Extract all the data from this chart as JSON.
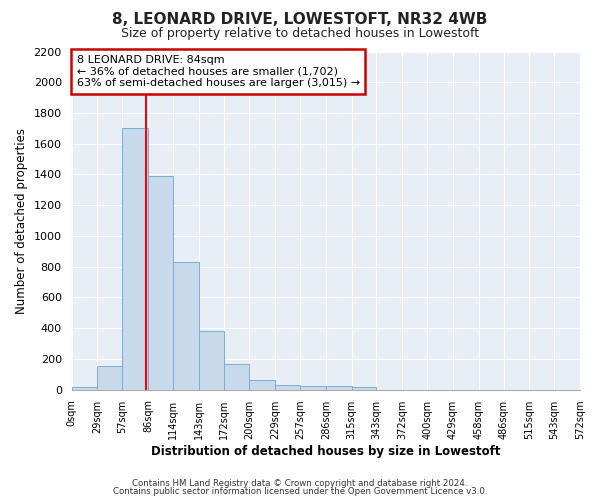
{
  "title": "8, LEONARD DRIVE, LOWESTOFT, NR32 4WB",
  "subtitle": "Size of property relative to detached houses in Lowestoft",
  "xlabel": "Distribution of detached houses by size in Lowestoft",
  "ylabel": "Number of detached properties",
  "bar_values": [
    20,
    155,
    1700,
    1390,
    830,
    380,
    165,
    65,
    30,
    25,
    25,
    15,
    0,
    0,
    0,
    0,
    0,
    0,
    0,
    0
  ],
  "bin_edges": [
    0,
    29,
    57,
    86,
    114,
    143,
    172,
    200,
    229,
    257,
    286,
    315,
    343,
    372,
    400,
    429,
    458,
    486,
    515,
    543,
    572
  ],
  "tick_labels": [
    "0sqm",
    "29sqm",
    "57sqm",
    "86sqm",
    "114sqm",
    "143sqm",
    "172sqm",
    "200sqm",
    "229sqm",
    "257sqm",
    "286sqm",
    "315sqm",
    "343sqm",
    "372sqm",
    "400sqm",
    "429sqm",
    "458sqm",
    "486sqm",
    "515sqm",
    "543sqm",
    "572sqm"
  ],
  "bar_color": "#c8d9ec",
  "bar_edge_color": "#7aaed4",
  "red_line_x": 84,
  "ylim": [
    0,
    2200
  ],
  "yticks": [
    0,
    200,
    400,
    600,
    800,
    1000,
    1200,
    1400,
    1600,
    1800,
    2000,
    2200
  ],
  "annotation_title": "8 LEONARD DRIVE: 84sqm",
  "annotation_line1": "← 36% of detached houses are smaller (1,702)",
  "annotation_line2": "63% of semi-detached houses are larger (3,015) →",
  "footer1": "Contains HM Land Registry data © Crown copyright and database right 2024.",
  "footer2": "Contains public sector information licensed under the Open Government Licence v3.0.",
  "background_color": "#ffffff",
  "plot_bg_color": "#e8eef5",
  "grid_color": "#ffffff",
  "title_fontsize": 11,
  "subtitle_fontsize": 9,
  "annotation_box_color": "#ffffff",
  "annotation_box_edge": "#cc0000"
}
